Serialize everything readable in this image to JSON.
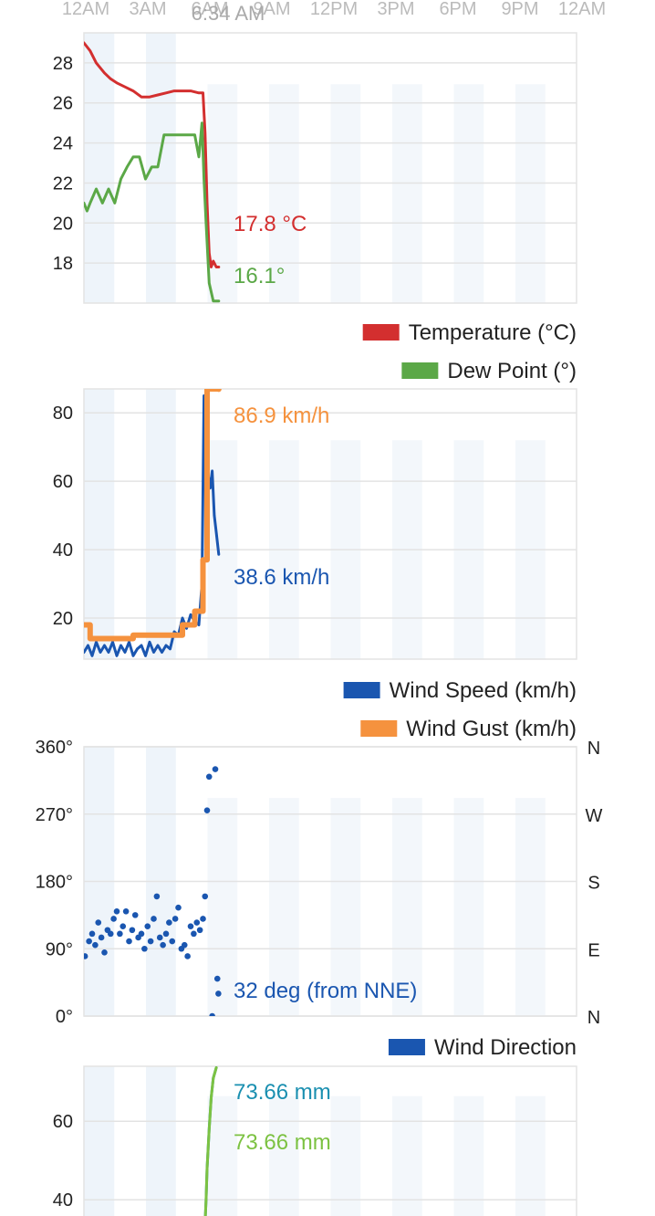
{
  "time_axis": {
    "ticks": [
      "12AM",
      "3AM",
      "6AM",
      "9AM",
      "12PM",
      "3PM",
      "6PM",
      "9PM",
      "12AM"
    ],
    "now_label": "6:34 AM"
  },
  "chart_data": [
    {
      "type": "line",
      "title": "",
      "x_unit": "hours since midnight",
      "xlim": [
        0,
        24
      ],
      "ylim": [
        16,
        29.5
      ],
      "y_ticks": [
        18,
        20,
        22,
        24,
        26,
        28
      ],
      "grid": true,
      "legend_placement": "bottom-right",
      "series": [
        {
          "name": "Temperature (°C)",
          "color": "#d32f2f",
          "x": [
            0,
            0.3,
            0.6,
            1.0,
            1.3,
            1.6,
            2.0,
            2.4,
            2.8,
            3.2,
            3.6,
            4.0,
            4.4,
            4.8,
            5.2,
            5.6,
            5.8,
            5.9,
            6.0,
            6.1,
            6.2,
            6.3,
            6.45,
            6.57
          ],
          "y": [
            29.0,
            28.6,
            28.0,
            27.5,
            27.2,
            27.0,
            26.8,
            26.6,
            26.3,
            26.3,
            26.4,
            26.5,
            26.6,
            26.6,
            26.6,
            26.5,
            26.5,
            24.5,
            21.0,
            18.5,
            17.8,
            18.1,
            17.8,
            17.8
          ]
        },
        {
          "name": "Dew Point (°)",
          "color": "#5ba847",
          "x": [
            0,
            0.15,
            0.3,
            0.6,
            0.9,
            1.2,
            1.5,
            1.8,
            2.1,
            2.4,
            2.7,
            3.0,
            3.3,
            3.6,
            3.9,
            4.2,
            4.5,
            4.8,
            5.1,
            5.4,
            5.6,
            5.75,
            5.85,
            5.95,
            6.1,
            6.3,
            6.57
          ],
          "y": [
            21.0,
            20.6,
            21.0,
            21.7,
            21.0,
            21.7,
            21.0,
            22.2,
            22.8,
            23.3,
            23.3,
            22.2,
            22.8,
            22.8,
            24.4,
            24.4,
            24.4,
            24.4,
            24.4,
            24.4,
            23.3,
            25.0,
            22.2,
            20.0,
            17.0,
            16.1,
            16.1
          ]
        }
      ],
      "readouts": [
        {
          "label": "17.8 °C",
          "color": "#d32f2f"
        },
        {
          "label": "16.1°",
          "color": "#5ba847"
        }
      ]
    },
    {
      "type": "line",
      "title": "",
      "x_unit": "hours since midnight",
      "xlim": [
        0,
        24
      ],
      "ylim": [
        8,
        87
      ],
      "y_ticks": [
        20,
        40,
        60,
        80
      ],
      "grid": true,
      "legend_placement": "bottom-right",
      "series": [
        {
          "name": "Wind Speed (km/h)",
          "color": "#1a56b0",
          "x": [
            0,
            0.2,
            0.4,
            0.6,
            0.8,
            1.0,
            1.2,
            1.4,
            1.6,
            1.8,
            2.0,
            2.2,
            2.4,
            2.6,
            2.8,
            3.0,
            3.2,
            3.4,
            3.6,
            3.8,
            4.0,
            4.2,
            4.4,
            4.6,
            4.8,
            5.0,
            5.2,
            5.4,
            5.6,
            5.75,
            5.85,
            5.95,
            6.05,
            6.15,
            6.25,
            6.35,
            6.45,
            6.57
          ],
          "y": [
            10,
            12,
            9,
            13,
            10,
            12,
            10,
            13,
            9,
            12,
            10,
            13,
            9,
            11,
            12,
            9,
            13,
            10,
            12,
            10,
            12,
            11,
            16,
            15,
            20,
            17,
            21,
            19,
            18,
            30,
            85,
            72,
            62,
            58,
            63,
            50,
            45,
            38.6
          ]
        },
        {
          "name": "Wind Gust (km/h)",
          "color": "#f5923e",
          "x": [
            0,
            0.3,
            0.6,
            1.2,
            1.8,
            2.4,
            3.0,
            3.6,
            4.2,
            4.8,
            5.0,
            5.4,
            5.7,
            5.8,
            6.0,
            6.3,
            6.57
          ],
          "y": [
            18,
            14,
            14,
            14,
            14,
            15,
            15,
            15,
            15,
            18,
            18,
            22,
            22,
            37,
            87,
            87,
            86.9
          ]
        }
      ],
      "readouts": [
        {
          "label": "86.9 km/h",
          "color": "#f5923e"
        },
        {
          "label": "38.6 km/h",
          "color": "#1a56b0"
        }
      ]
    },
    {
      "type": "scatter",
      "title": "",
      "x_unit": "hours since midnight",
      "xlim": [
        0,
        24
      ],
      "ylim": [
        0,
        360
      ],
      "y_ticks": [
        "0°",
        "90°",
        "180°",
        "270°",
        "360°"
      ],
      "y_right_ticks": [
        "N",
        "E",
        "S",
        "W",
        "N"
      ],
      "grid": true,
      "legend_placement": "bottom-right",
      "series": [
        {
          "name": "Wind Direction",
          "color": "#1a56b0",
          "x": [
            0.05,
            0.25,
            0.4,
            0.55,
            0.7,
            0.85,
            1.0,
            1.15,
            1.3,
            1.45,
            1.6,
            1.75,
            1.9,
            2.05,
            2.2,
            2.35,
            2.5,
            2.65,
            2.8,
            2.95,
            3.1,
            3.25,
            3.4,
            3.55,
            3.7,
            3.85,
            4.0,
            4.15,
            4.3,
            4.45,
            4.6,
            4.75,
            4.9,
            5.05,
            5.2,
            5.35,
            5.5,
            5.65,
            5.8,
            5.9,
            6.0,
            6.1,
            6.25,
            6.4,
            6.5,
            6.55
          ],
          "y": [
            80,
            100,
            110,
            95,
            125,
            105,
            85,
            115,
            110,
            130,
            140,
            110,
            120,
            140,
            100,
            115,
            135,
            105,
            110,
            90,
            120,
            100,
            130,
            160,
            105,
            95,
            110,
            125,
            100,
            130,
            145,
            90,
            95,
            80,
            120,
            110,
            125,
            115,
            130,
            160,
            275,
            320,
            0,
            330,
            50,
            30
          ]
        }
      ],
      "readouts": [
        {
          "label": "32 deg (from NNE)",
          "color": "#1a56b0"
        }
      ]
    },
    {
      "type": "line",
      "title": "",
      "x_unit": "hours since midnight",
      "xlim": [
        0,
        24
      ],
      "ylim": [
        34,
        74
      ],
      "y_ticks": [
        40,
        60
      ],
      "grid": true,
      "series": [
        {
          "name": "",
          "color": "#1a8fb0",
          "x": [
            5.9,
            5.95,
            6.0,
            6.1,
            6.2,
            6.3,
            6.45
          ],
          "y": [
            34,
            40,
            48,
            58,
            66,
            71,
            73.66
          ]
        },
        {
          "name": "",
          "color": "#7cc242",
          "x": [
            5.9,
            5.95,
            6.0,
            6.1,
            6.2,
            6.3,
            6.45
          ],
          "y": [
            34,
            40,
            48,
            58,
            66,
            71,
            73.66
          ]
        }
      ],
      "readouts": [
        {
          "label": "73.66 mm",
          "color": "#1a8fb0"
        },
        {
          "label": "73.66 mm",
          "color": "#7cc242"
        }
      ]
    }
  ]
}
